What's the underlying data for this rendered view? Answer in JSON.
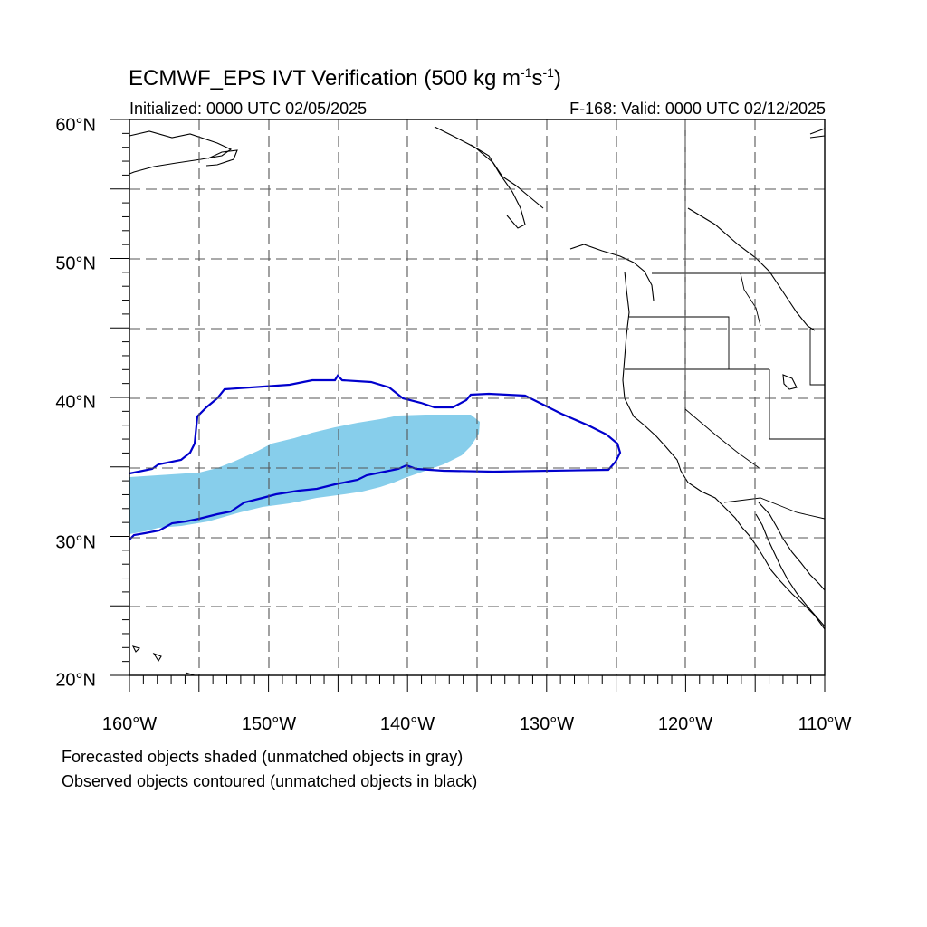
{
  "title": {
    "main": "ECMWF_EPS IVT Verification (500 kg m",
    "exp1": "-1",
    "mid": "s",
    "exp2": "-1",
    "close": ")"
  },
  "initialized": "Initialized: 0000 UTC 02/05/2025",
  "valid": "F-168: Valid: 0000 UTC 02/12/2025",
  "lat_labels": [
    "60°N",
    "50°N",
    "40°N",
    "30°N",
    "20°N"
  ],
  "lon_labels": [
    "160°W",
    "150°W",
    "140°W",
    "130°W",
    "120°W",
    "110°W"
  ],
  "footer": {
    "line1": "Forecasted objects shaded (unmatched objects in gray)",
    "line2": "Observed objects contoured (unmatched objects in black)"
  },
  "colors": {
    "forecast_fill": "#87CEEB",
    "observed_contour": "#0000CD",
    "coastline": "#000000"
  }
}
